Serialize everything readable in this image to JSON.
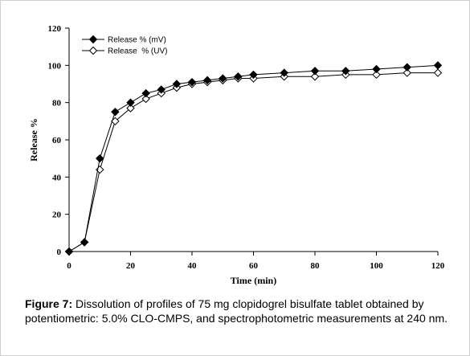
{
  "chart_data": {
    "type": "line",
    "xlabel": "Time (min)",
    "ylabel": "Release %",
    "xlim": [
      0,
      120
    ],
    "ylim": [
      0,
      120
    ],
    "xticks": [
      0,
      20,
      40,
      60,
      80,
      100,
      120
    ],
    "yticks": [
      0,
      20,
      40,
      60,
      80,
      100,
      120
    ],
    "grid": false,
    "legend_position": "top-left",
    "x": [
      0,
      5,
      10,
      15,
      20,
      25,
      30,
      35,
      40,
      45,
      50,
      55,
      60,
      70,
      80,
      90,
      100,
      110,
      120
    ],
    "series": [
      {
        "name": "Release % (mV)",
        "marker": "filled-diamond",
        "values": [
          0,
          5,
          50,
          75,
          80,
          85,
          87,
          90,
          91,
          92,
          93,
          94,
          95,
          96,
          97,
          97,
          98,
          99,
          100
        ]
      },
      {
        "name": "Release  % (UV)",
        "marker": "open-diamond",
        "values": [
          0,
          5,
          44,
          70,
          77,
          82,
          85,
          88,
          90,
          91,
          92,
          93,
          93,
          94,
          94,
          95,
          95,
          96,
          96
        ]
      }
    ]
  },
  "caption": {
    "label": "Figure 7:",
    "text": " Dissolution of profiles of 75 mg clopidogrel bisulfate tablet obtained by potentiometric: 5.0% CLO-CMPS, and spectrophotometric measurements at 240 nm."
  }
}
